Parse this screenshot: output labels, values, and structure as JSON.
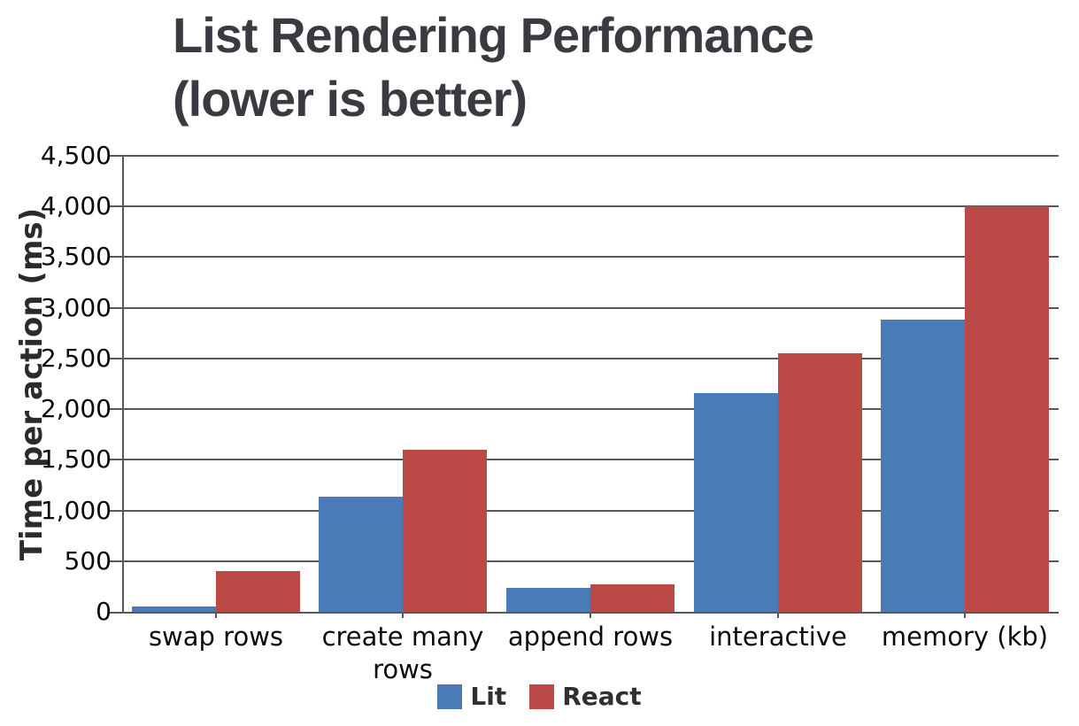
{
  "title": {
    "line1": "List Rendering Performance",
    "line2": "(lower is better)"
  },
  "chart_data": {
    "type": "bar",
    "title": "List Rendering Performance (lower is better)",
    "xlabel": "",
    "ylabel": "Time per action (ms)",
    "ylim": [
      0,
      4500
    ],
    "ytick_step": 500,
    "grid": true,
    "legend_position": "bottom-center",
    "categories": [
      "swap rows",
      "create many rows",
      "append rows",
      "interactive",
      "memory (kb)"
    ],
    "series": [
      {
        "name": "Lit",
        "color": "#4A7BB7",
        "values": [
          50,
          1140,
          240,
          2160,
          2880
        ]
      },
      {
        "name": "React",
        "color": "#BB4946",
        "values": [
          405,
          1595,
          270,
          2555,
          4000
        ]
      }
    ]
  },
  "colors": {
    "gridline": "#58585a",
    "title_text": "#393b40",
    "axis_text": "#0a0a0a",
    "lit_blue": "#4A7BB7",
    "react_red": "#BB4946"
  }
}
